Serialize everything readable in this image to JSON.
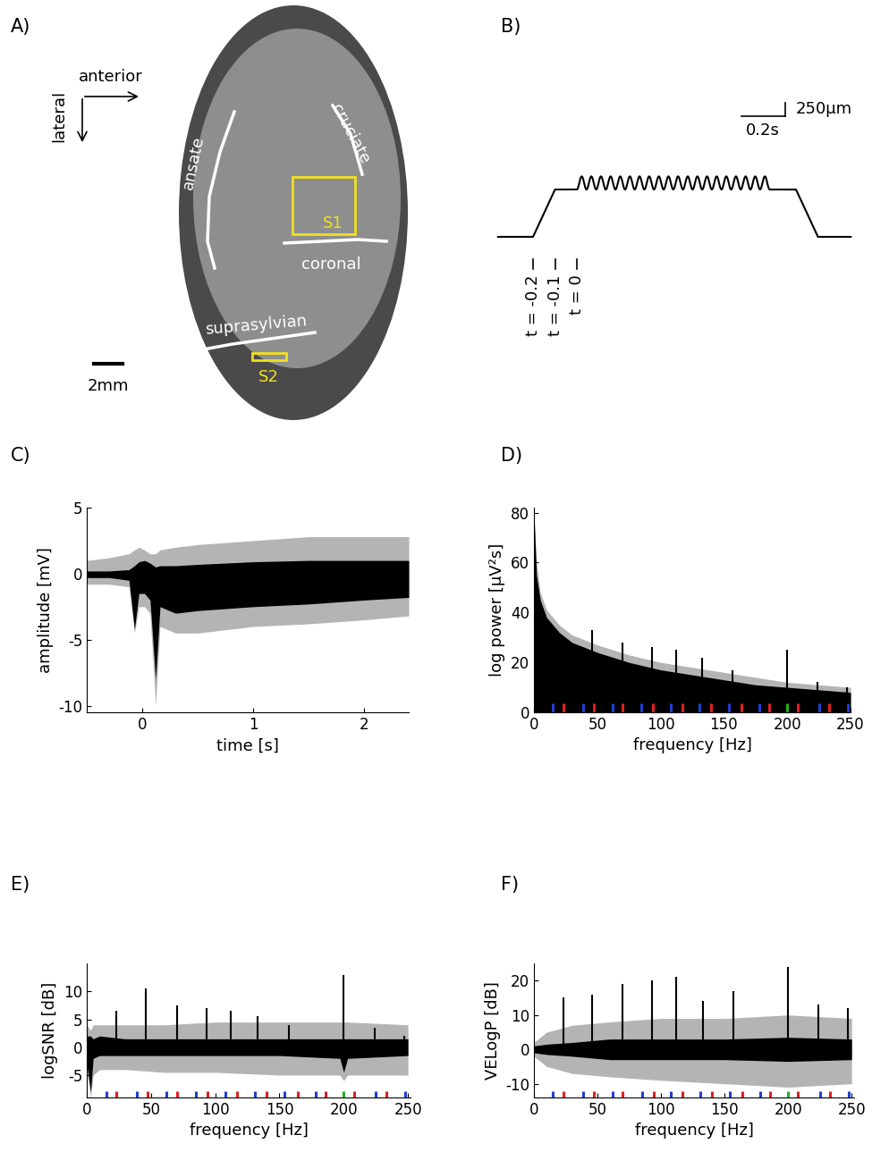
{
  "panel_labels": [
    "A)",
    "B)",
    "C)",
    "D)",
    "E)",
    "F)"
  ],
  "panel_A": {
    "directions": [
      "anterior",
      "lateral"
    ],
    "sulci": [
      "ansate",
      "cruciate",
      "coronal",
      "suprasylvian"
    ],
    "regions": [
      "S1",
      "S2"
    ],
    "region_color": "#f0e020",
    "scale_bar": "2mm"
  },
  "panel_B": {
    "scale_bars": {
      "time": {
        "value": 0.2,
        "label": "0.2s"
      },
      "displacement": {
        "value": 250,
        "label": "250µm"
      }
    },
    "time_marks": [
      {
        "value": -0.2,
        "label": "t = -0.2"
      },
      {
        "value": -0.1,
        "label": "t = -0.1"
      },
      {
        "value": 0,
        "label": "t = 0"
      }
    ],
    "trajectory": {
      "t": [
        -0.36,
        -0.2,
        -0.1,
        1.0,
        1.1,
        1.25
      ],
      "displacement": [
        0,
        0,
        900,
        900,
        0,
        0
      ]
    },
    "vibration": {
      "start": 0.0,
      "end": 0.88,
      "cycles": 20,
      "peak_to_peak": 250
    }
  },
  "chart_data": [
    {
      "type": "line",
      "xlabel": "time [s]",
      "ylabel": "amplitude [mV]",
      "xlim": [
        -0.5,
        2.4
      ],
      "ylim": [
        -10.5,
        5
      ],
      "xticks": [
        0,
        1,
        2
      ],
      "yticks": [
        -10,
        -5,
        0,
        5
      ],
      "x": [
        -0.5,
        -0.3,
        -0.12,
        -0.07,
        -0.03,
        0.02,
        0.07,
        0.12,
        0.16,
        0.3,
        0.5,
        1.0,
        1.5,
        2.0,
        2.4
      ],
      "series": [
        {
          "color": "#b4b4b4",
          "upper": [
            1.0,
            1.2,
            1.5,
            1.8,
            2.0,
            1.8,
            1.5,
            1.5,
            1.8,
            2.0,
            2.2,
            2.5,
            2.8,
            2.8,
            2.8
          ],
          "lower": [
            -0.8,
            -0.8,
            -1.0,
            -4.5,
            -2.5,
            -2.5,
            -3.0,
            -10.0,
            -4.0,
            -4.5,
            -4.5,
            -4.0,
            -3.8,
            -3.5,
            -3.2
          ]
        },
        {
          "color": "#000000",
          "upper": [
            0.2,
            0.2,
            0.3,
            0.6,
            0.9,
            1.0,
            0.8,
            0.5,
            0.6,
            0.6,
            0.7,
            0.9,
            1.0,
            1.0,
            1.0
          ],
          "lower": [
            -0.3,
            -0.3,
            -0.5,
            -4.2,
            -1.5,
            -1.5,
            -2.0,
            -8.0,
            -2.5,
            -3.0,
            -2.8,
            -2.5,
            -2.3,
            -2.0,
            -1.8
          ]
        }
      ]
    },
    {
      "type": "line",
      "xlabel": "frequency [Hz]",
      "ylabel": "log power [μV²s]",
      "xlim": [
        0,
        250
      ],
      "ylim": [
        0,
        82
      ],
      "xticks": [
        0,
        50,
        100,
        150,
        200,
        250
      ],
      "yticks": [
        0,
        20,
        40,
        60,
        80
      ],
      "x": [
        0,
        2,
        5,
        10,
        20,
        30,
        50,
        75,
        100,
        125,
        150,
        175,
        200,
        225,
        250
      ],
      "series": [
        {
          "color": "#b4b4b4",
          "upper": [
            80,
            60,
            48,
            41,
            35,
            31,
            27,
            23,
            20,
            18,
            16,
            14,
            12,
            11,
            10
          ],
          "lower": [
            0,
            0,
            0,
            0,
            0,
            0,
            0,
            0,
            0,
            0,
            0,
            0,
            0,
            0,
            0
          ]
        },
        {
          "color": "#000000",
          "upper": [
            80,
            55,
            45,
            38,
            32,
            28,
            24,
            20,
            17,
            15,
            13,
            11,
            10,
            9,
            8
          ],
          "lower": [
            0,
            0,
            0,
            0,
            0,
            0,
            0,
            0,
            0,
            0,
            0,
            0,
            0,
            0,
            0
          ]
        }
      ],
      "peaks": {
        "color": "#000000",
        "x": [
          23,
          46,
          70,
          93,
          112,
          133,
          157,
          200,
          224,
          247
        ],
        "values": [
          27,
          33,
          28,
          26,
          25,
          22,
          17,
          25,
          12,
          10
        ]
      },
      "frequency_markers": [
        {
          "color": "#1f3fd0",
          "x": [
            15,
            39,
            62,
            85,
            108,
            131,
            154,
            178,
            225,
            248
          ]
        },
        {
          "color": "#e02020",
          "x": [
            23,
            47,
            70,
            94,
            117,
            140,
            164,
            186,
            208,
            233
          ]
        },
        {
          "color": "#20b020",
          "x": [
            200
          ]
        }
      ]
    },
    {
      "type": "line",
      "xlabel": "frequency [Hz]",
      "ylabel": "logSNR [dB]",
      "xlim": [
        0,
        252
      ],
      "ylim": [
        -9,
        15
      ],
      "xticks": [
        0,
        50,
        100,
        150,
        200,
        250
      ],
      "yticks": [
        -5,
        0,
        5,
        10
      ],
      "x": [
        0,
        3,
        5,
        10,
        30,
        60,
        100,
        150,
        197,
        200,
        203,
        250
      ],
      "series": [
        {
          "color": "#b4b4b4",
          "upper": [
            4,
            3,
            4,
            4,
            4,
            4,
            4.5,
            4.5,
            4.5,
            4.5,
            4.5,
            4
          ],
          "lower": [
            -4,
            -9,
            -5,
            -4,
            -4,
            -4.5,
            -4.5,
            -5,
            -5,
            -6,
            -5,
            -5
          ]
        },
        {
          "color": "#000000",
          "upper": [
            2,
            2,
            1.5,
            2,
            1.5,
            1.5,
            1.5,
            1.5,
            1.5,
            1.5,
            1.5,
            1.5
          ],
          "lower": [
            -3,
            -8,
            -2,
            -1.5,
            -1.5,
            -1.5,
            -1.5,
            -1.5,
            -2,
            -4.5,
            -2,
            -1.5
          ]
        }
      ],
      "peaks": {
        "color": "#000000",
        "x": [
          23,
          46,
          70,
          93,
          112,
          133,
          157,
          200,
          224,
          247
        ],
        "values": [
          6.5,
          10.5,
          7.5,
          7,
          6.5,
          5.5,
          4,
          13,
          3.5,
          2
        ]
      },
      "frequency_markers": [
        {
          "color": "#1f3fd0",
          "x": [
            15,
            39,
            62,
            85,
            108,
            131,
            154,
            178,
            225,
            248
          ]
        },
        {
          "color": "#e02020",
          "x": [
            23,
            47,
            70,
            94,
            117,
            140,
            164,
            186,
            208,
            233
          ]
        },
        {
          "color": "#20b020",
          "x": [
            200
          ]
        }
      ]
    },
    {
      "type": "line",
      "xlabel": "frequency [Hz]",
      "ylabel": "VELogP [dB]",
      "xlim": [
        0,
        252
      ],
      "ylim": [
        -14,
        25
      ],
      "xticks": [
        0,
        50,
        100,
        150,
        200,
        250
      ],
      "yticks": [
        -10,
        0,
        10,
        20
      ],
      "x": [
        0,
        10,
        30,
        60,
        100,
        150,
        200,
        250
      ],
      "series": [
        {
          "color": "#b4b4b4",
          "upper": [
            2,
            5,
            7,
            8,
            9,
            9,
            10,
            9
          ],
          "lower": [
            -2,
            -5,
            -7,
            -8,
            -9,
            -10,
            -11,
            -10
          ]
        },
        {
          "color": "#000000",
          "upper": [
            1,
            1.5,
            2,
            3,
            3,
            3,
            3.5,
            3
          ],
          "lower": [
            -1,
            -1.5,
            -2,
            -3,
            -3,
            -3,
            -3.5,
            -3
          ]
        }
      ],
      "peaks": {
        "color": "#000000",
        "x": [
          23,
          46,
          70,
          93,
          112,
          133,
          157,
          200,
          224,
          247
        ],
        "values": [
          15,
          16,
          19,
          20,
          21,
          14,
          17,
          24,
          13,
          12
        ]
      },
      "frequency_markers": [
        {
          "color": "#1f3fd0",
          "x": [
            15,
            39,
            62,
            85,
            108,
            131,
            154,
            178,
            225,
            248
          ]
        },
        {
          "color": "#e02020",
          "x": [
            23,
            47,
            70,
            94,
            117,
            140,
            164,
            186,
            208,
            233
          ]
        },
        {
          "color": "#20b020",
          "x": [
            200
          ]
        }
      ]
    }
  ]
}
